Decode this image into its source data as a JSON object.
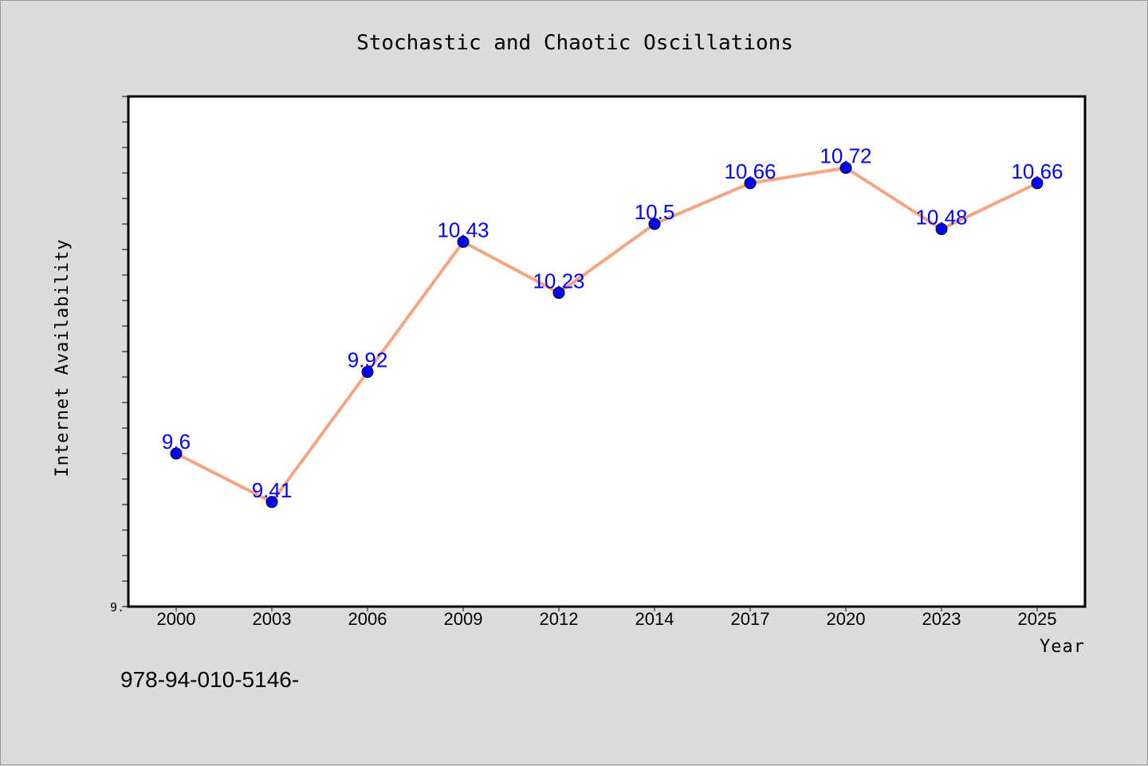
{
  "chart_data": {
    "type": "line",
    "title": "Stochastic and Chaotic Oscillations",
    "xlabel": "Year",
    "ylabel": "Internet Availability",
    "categories": [
      "2000",
      "2003",
      "2006",
      "2009",
      "2012",
      "2014",
      "2017",
      "2020",
      "2023",
      "2025"
    ],
    "series": [
      {
        "values": [
          9.6,
          9.41,
          9.92,
          10.43,
          10.23,
          10.5,
          10.66,
          10.72,
          10.48,
          10.66
        ]
      }
    ],
    "ylim": [
      9.0,
      11.0
    ],
    "y_visible_tick_label": "9.",
    "line_color": "#f4a582",
    "marker_color": "#0000ff",
    "label_color": "#0000ff",
    "grid": false,
    "data_labels": true
  },
  "footnote": "978-94-010-5146-"
}
